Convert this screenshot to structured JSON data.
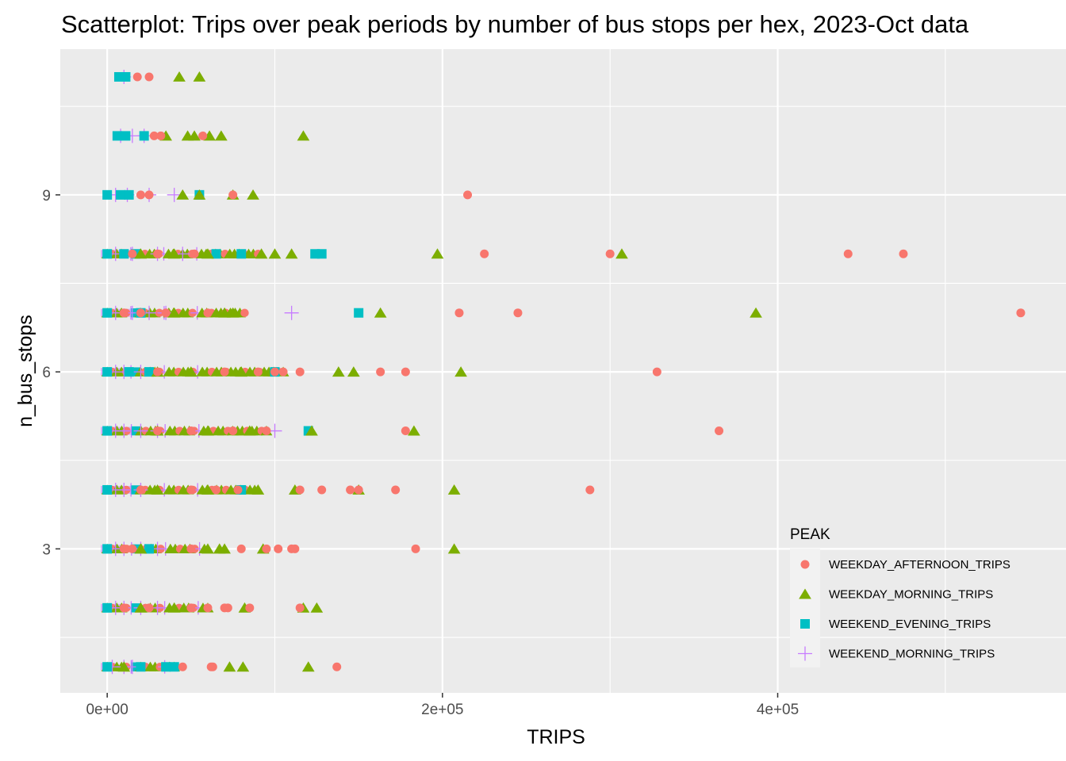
{
  "chart_data": {
    "type": "scatter",
    "title": "Scatterplot: Trips over peak periods by number of bus stops per hex, 2023-Oct data",
    "xlabel": "TRIPS",
    "ylabel": "n_bus_stops",
    "xlim": [
      -28000,
      572000
    ],
    "ylim": [
      0.56,
      11.47
    ],
    "x_ticks": [
      0,
      200000,
      400000
    ],
    "x_tick_labels": [
      "0e+00",
      "2e+05",
      "4e+05"
    ],
    "y_ticks": [
      3,
      6,
      9
    ],
    "y_tick_labels": [
      "3",
      "6",
      "9"
    ],
    "grid": true,
    "background": "#EBEBEB",
    "legend": {
      "title": "PEAK",
      "position": "right-bottom, inside plot"
    },
    "series": [
      {
        "name": "WEEKDAY_AFTERNOON_TRIPS",
        "color": "#F8766D",
        "shape": "circle",
        "points": [
          [
            18000,
            11
          ],
          [
            25000,
            11
          ],
          [
            28000,
            10
          ],
          [
            32000,
            10
          ],
          [
            57000,
            10
          ],
          [
            20000,
            9
          ],
          [
            25000,
            9
          ],
          [
            75000,
            9
          ],
          [
            215000,
            9
          ],
          [
            15000,
            8
          ],
          [
            30000,
            8
          ],
          [
            52000,
            8
          ],
          [
            225000,
            8
          ],
          [
            300000,
            8
          ],
          [
            442000,
            8
          ],
          [
            475000,
            8
          ],
          [
            10000,
            7
          ],
          [
            20000,
            7
          ],
          [
            35000,
            7
          ],
          [
            60000,
            7
          ],
          [
            210000,
            7
          ],
          [
            245000,
            7
          ],
          [
            545000,
            7
          ],
          [
            30000,
            6
          ],
          [
            70000,
            6
          ],
          [
            90000,
            6
          ],
          [
            100000,
            6
          ],
          [
            105000,
            6
          ],
          [
            115000,
            6
          ],
          [
            163000,
            6
          ],
          [
            178000,
            6
          ],
          [
            328000,
            6
          ],
          [
            30000,
            5
          ],
          [
            50000,
            5
          ],
          [
            75000,
            5
          ],
          [
            95000,
            5
          ],
          [
            178000,
            5
          ],
          [
            365000,
            5
          ],
          [
            20000,
            4
          ],
          [
            50000,
            4
          ],
          [
            65000,
            4
          ],
          [
            78000,
            4
          ],
          [
            115000,
            4
          ],
          [
            128000,
            4
          ],
          [
            145000,
            4
          ],
          [
            150000,
            4
          ],
          [
            172000,
            4
          ],
          [
            288000,
            4
          ],
          [
            10000,
            3
          ],
          [
            15000,
            3
          ],
          [
            50000,
            3
          ],
          [
            80000,
            3
          ],
          [
            95000,
            3
          ],
          [
            102000,
            3
          ],
          [
            110000,
            3
          ],
          [
            112000,
            3
          ],
          [
            184000,
            3
          ],
          [
            10000,
            2
          ],
          [
            25000,
            2
          ],
          [
            50000,
            2
          ],
          [
            60000,
            2
          ],
          [
            70000,
            2
          ],
          [
            72000,
            2
          ],
          [
            85000,
            2
          ],
          [
            115000,
            2
          ],
          [
            45000,
            1
          ],
          [
            62000,
            1
          ],
          [
            63000,
            1
          ],
          [
            137000,
            1
          ]
        ]
      },
      {
        "name": "WEEKDAY_MORNING_TRIPS",
        "color": "#7CAE00",
        "shape": "triangle",
        "points": [
          [
            43000,
            11
          ],
          [
            55000,
            11
          ],
          [
            35000,
            10
          ],
          [
            48000,
            10
          ],
          [
            52000,
            10
          ],
          [
            61000,
            10
          ],
          [
            68000,
            10
          ],
          [
            117000,
            10
          ],
          [
            45000,
            9
          ],
          [
            55000,
            9
          ],
          [
            75000,
            9
          ],
          [
            87000,
            9
          ],
          [
            20000,
            8
          ],
          [
            40000,
            8
          ],
          [
            60000,
            8
          ],
          [
            92000,
            8
          ],
          [
            100000,
            8
          ],
          [
            110000,
            8
          ],
          [
            197000,
            8
          ],
          [
            307000,
            8
          ],
          [
            40000,
            7
          ],
          [
            70000,
            7
          ],
          [
            75000,
            7
          ],
          [
            163000,
            7
          ],
          [
            387000,
            7
          ],
          [
            30000,
            6
          ],
          [
            50000,
            6
          ],
          [
            80000,
            6
          ],
          [
            138000,
            6
          ],
          [
            147000,
            6
          ],
          [
            211000,
            6
          ],
          [
            30000,
            5
          ],
          [
            60000,
            5
          ],
          [
            85000,
            5
          ],
          [
            122000,
            5
          ],
          [
            183000,
            5
          ],
          [
            30000,
            4
          ],
          [
            60000,
            4
          ],
          [
            90000,
            4
          ],
          [
            112000,
            4
          ],
          [
            150000,
            4
          ],
          [
            207000,
            4
          ],
          [
            20000,
            3
          ],
          [
            60000,
            3
          ],
          [
            67000,
            3
          ],
          [
            70000,
            3
          ],
          [
            93000,
            3
          ],
          [
            207000,
            3
          ],
          [
            20000,
            2
          ],
          [
            40000,
            2
          ],
          [
            82000,
            2
          ],
          [
            117000,
            2
          ],
          [
            125000,
            2
          ],
          [
            10000,
            1
          ],
          [
            73000,
            1
          ],
          [
            81000,
            1
          ],
          [
            120000,
            1
          ]
        ]
      },
      {
        "name": "WEEKEND_EVENING_TRIPS",
        "color": "#00BFC4",
        "shape": "square",
        "points": [
          [
            7000,
            11
          ],
          [
            11000,
            11
          ],
          [
            6000,
            10
          ],
          [
            11000,
            10
          ],
          [
            22000,
            10
          ],
          [
            0,
            9
          ],
          [
            8000,
            9
          ],
          [
            13000,
            9
          ],
          [
            55000,
            9
          ],
          [
            0,
            8
          ],
          [
            10000,
            8
          ],
          [
            17000,
            8
          ],
          [
            65000,
            8
          ],
          [
            80000,
            8
          ],
          [
            124000,
            8
          ],
          [
            128000,
            8
          ],
          [
            0,
            7
          ],
          [
            20000,
            7
          ],
          [
            150000,
            7
          ],
          [
            0,
            6
          ],
          [
            13000,
            6
          ],
          [
            25000,
            6
          ],
          [
            100000,
            6
          ],
          [
            0,
            5
          ],
          [
            120000,
            5
          ],
          [
            0,
            4
          ],
          [
            80000,
            4
          ],
          [
            0,
            3
          ],
          [
            25000,
            3
          ],
          [
            0,
            2
          ],
          [
            0,
            1
          ],
          [
            20000,
            1
          ],
          [
            35000,
            1
          ],
          [
            40000,
            1
          ]
        ]
      },
      {
        "name": "WEEKEND_MORNING_TRIPS",
        "color": "#C77CFF",
        "shape": "plus",
        "points": [
          [
            10000,
            11
          ],
          [
            8000,
            10
          ],
          [
            15000,
            10
          ],
          [
            22000,
            10
          ],
          [
            5000,
            9
          ],
          [
            12000,
            9
          ],
          [
            25000,
            9
          ],
          [
            40000,
            9
          ],
          [
            5000,
            8
          ],
          [
            15000,
            8
          ],
          [
            30000,
            8
          ],
          [
            45000,
            8
          ],
          [
            5000,
            7
          ],
          [
            15000,
            7
          ],
          [
            25000,
            7
          ],
          [
            35000,
            7
          ],
          [
            110000,
            7
          ],
          [
            5000,
            6
          ],
          [
            10000,
            6
          ],
          [
            20000,
            6
          ],
          [
            5000,
            5
          ],
          [
            10000,
            5
          ],
          [
            20000,
            5
          ],
          [
            30000,
            5
          ],
          [
            100000,
            5
          ],
          [
            5000,
            4
          ],
          [
            10000,
            4
          ],
          [
            20000,
            4
          ],
          [
            5000,
            3
          ],
          [
            10000,
            3
          ],
          [
            20000,
            3
          ],
          [
            30000,
            3
          ],
          [
            5000,
            2
          ],
          [
            10000,
            2
          ],
          [
            20000,
            2
          ],
          [
            30000,
            2
          ],
          [
            3000,
            1
          ],
          [
            10000,
            1
          ],
          [
            15000,
            1
          ]
        ]
      }
    ],
    "dense_strips": [
      {
        "y": 8,
        "x_range": [
          0,
          90000
        ]
      },
      {
        "y": 7,
        "x_range": [
          0,
          82000
        ]
      },
      {
        "y": 6,
        "x_range": [
          0,
          105000
        ]
      },
      {
        "y": 5,
        "x_range": [
          0,
          95000
        ]
      },
      {
        "y": 4,
        "x_range": [
          0,
          88000
        ]
      },
      {
        "y": 3,
        "x_range": [
          0,
          58000
        ]
      },
      {
        "y": 2,
        "x_range": [
          0,
          60000
        ]
      },
      {
        "y": 1,
        "x_range": [
          0,
          40000
        ]
      }
    ]
  }
}
